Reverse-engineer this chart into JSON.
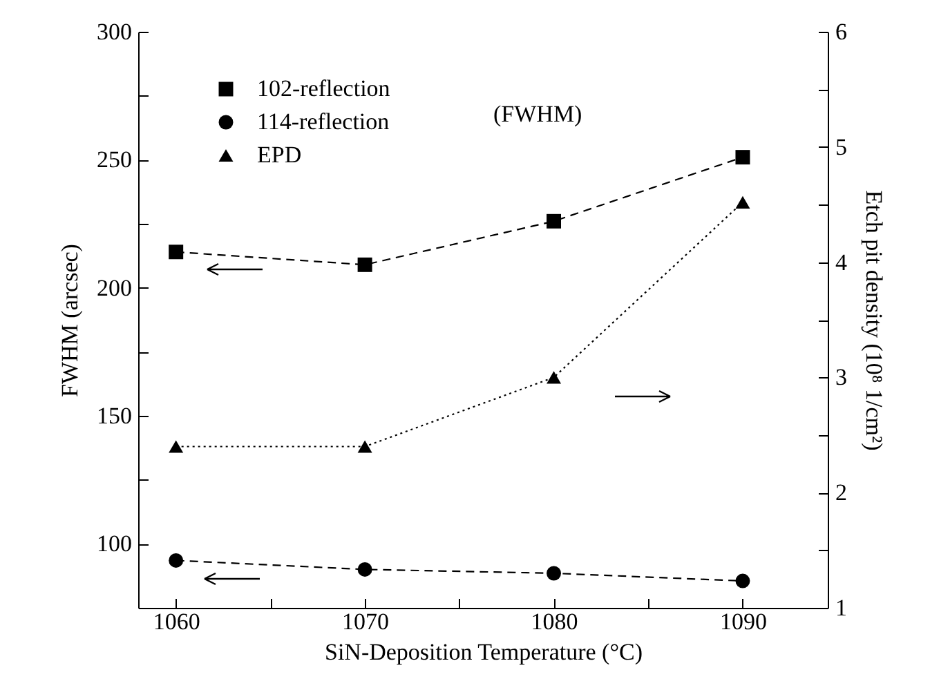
{
  "chart_data": {
    "type": "line",
    "xlabel": "SiN-Deposition Temperature (°C)",
    "ylabel": "FWHM (arcsec)",
    "y2label": "Etch pit density (10⁸ 1/cm²)",
    "x": [
      1060,
      1070,
      1080,
      1090
    ],
    "xlim": [
      1058,
      1094.5
    ],
    "xticks": [
      1060,
      {
        "value": 1065,
        "label": null
      },
      1070,
      {
        "value": 1075,
        "label": null
      },
      1080,
      {
        "value": 1085,
        "label": null
      },
      1090
    ],
    "ylim": [
      75,
      300
    ],
    "yticks": [
      100,
      {
        "value": 125,
        "label": null
      },
      150,
      {
        "value": 175,
        "label": null
      },
      200,
      {
        "value": 225,
        "label": null
      },
      250,
      {
        "value": 275,
        "label": null
      },
      300
    ],
    "y2lim": [
      1,
      6
    ],
    "y2ticks": [
      1,
      {
        "value": 1.5,
        "label": null
      },
      2,
      {
        "value": 2.5,
        "label": null
      },
      3,
      {
        "value": 3.5,
        "label": null
      },
      4,
      {
        "value": 4.5,
        "label": null
      },
      5,
      {
        "value": 5.5,
        "label": null
      },
      6
    ],
    "series": [
      {
        "name": "102-reflection",
        "color": "#000000",
        "marker": "square",
        "line_style": "dashed",
        "values": [
          214,
          209,
          226,
          251
        ]
      },
      {
        "name": "114-reflection",
        "color": "#000000",
        "marker": "circle",
        "line_style": "dashed",
        "values": [
          93.5,
          90,
          88.5,
          85.5
        ]
      },
      {
        "name": "EPD",
        "color": "#000000",
        "marker": "triangle",
        "line_style": "dotted",
        "axis": "y2",
        "values": [
          2.4,
          2.4,
          3.0,
          4.52
        ]
      }
    ],
    "annotations": [
      "(FWHM)"
    ],
    "legend": "top left",
    "grid": false
  }
}
